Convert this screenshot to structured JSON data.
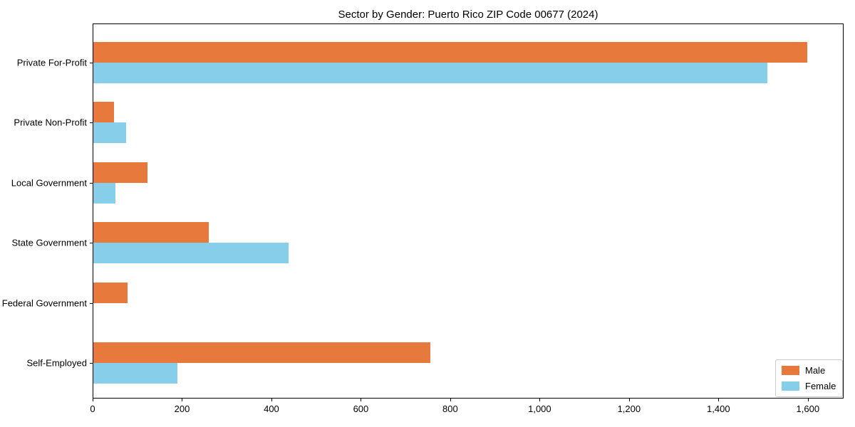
{
  "chart_data": {
    "type": "bar",
    "orientation": "horizontal",
    "title": "Sector by Gender: Puerto Rico ZIP Code 00677 (2024)",
    "categories": [
      "Private For-Profit",
      "Private Non-Profit",
      "Local Government",
      "State Government",
      "Federal Government",
      "Self-Employed"
    ],
    "series": [
      {
        "name": "Male",
        "color": "#E8793C",
        "values": [
          1600,
          46,
          122,
          258,
          76,
          755
        ]
      },
      {
        "name": "Female",
        "color": "#87CEEB",
        "values": [
          1510,
          73,
          49,
          438,
          0,
          188
        ]
      }
    ],
    "xlabel": "",
    "ylabel": "",
    "xlim": [
      0,
      1680
    ],
    "xticks": [
      0,
      200,
      400,
      600,
      800,
      1000,
      1200,
      1400,
      1600
    ],
    "xtick_labels": [
      "0",
      "200",
      "400",
      "600",
      "800",
      "1,000",
      "1,200",
      "1,400",
      "1,600"
    ],
    "grid": false,
    "legend_position": "lower right",
    "background_color": "#ffffff",
    "axis_color": "#000000"
  }
}
